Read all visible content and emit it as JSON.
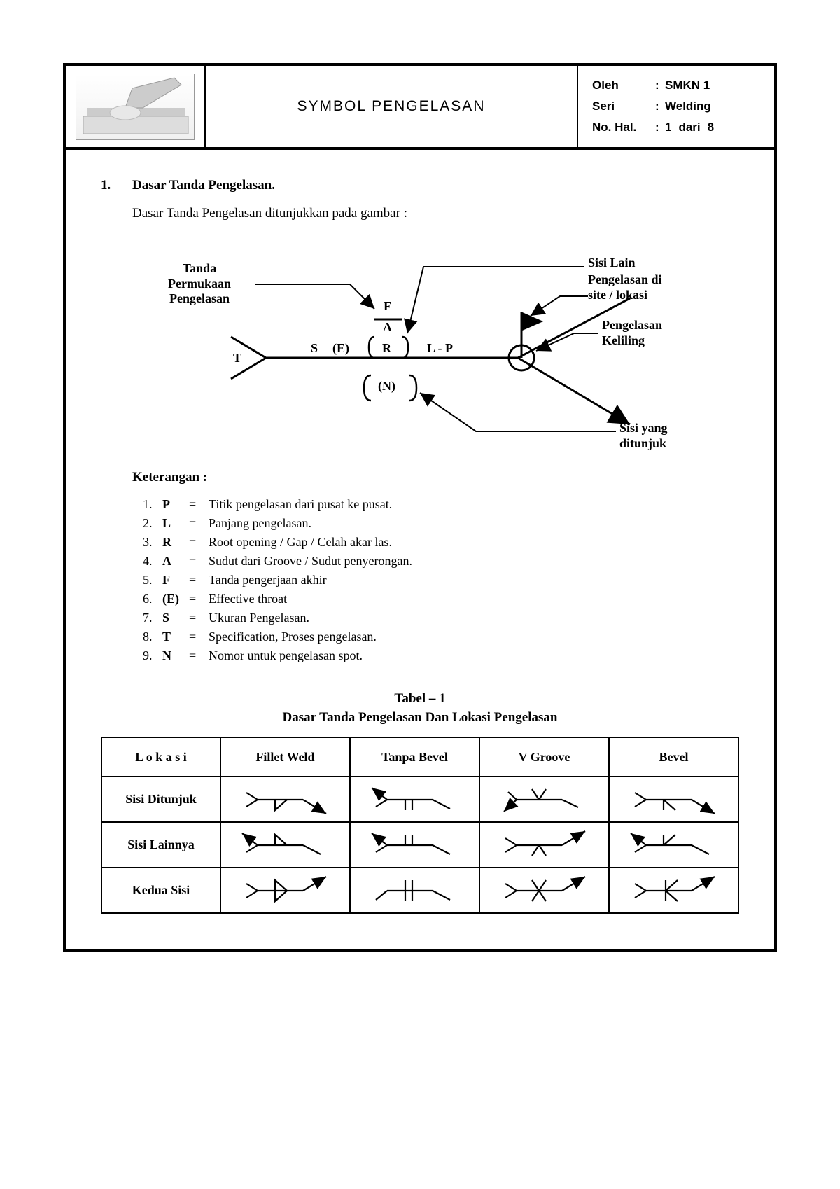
{
  "header": {
    "title": "SYMBOL  PENGELASAN",
    "meta": {
      "oleh_label": "Oleh",
      "oleh_value": "SMKN 1",
      "seri_label": "Seri",
      "seri_value": "Welding",
      "hal_label": "No. Hal.",
      "hal_page": "1",
      "hal_mid": "dari",
      "hal_total": "8"
    }
  },
  "section": {
    "num": "1.",
    "title": "Dasar Tanda Pengelasan.",
    "intro": "Dasar Tanda Pengelasan ditunjukkan pada gambar :"
  },
  "diagram": {
    "labels": {
      "tanda_permukaan": "Tanda\nPermukaan\nPengelasan",
      "sisi_lain": "Sisi Lain",
      "peng_site": "Pengelasan di\nsite / lokasi",
      "peng_keliling": "Pengelasan\nKeliling",
      "sisi_ditunjuk": "Sisi yang\nditunjuk",
      "F": "F",
      "A": "A",
      "S": "S",
      "E": "(E)",
      "R": "R",
      "L": "L - P",
      "N": "(N)",
      "T": "T"
    },
    "style": {
      "stroke": "#000000",
      "stroke_width_main": 3,
      "stroke_width_thin": 2,
      "circle_r": 18
    }
  },
  "keterangan": {
    "title": "Keterangan :",
    "items": [
      {
        "n": "1.",
        "sym": "P",
        "desc": "Titik pengelasan dari pusat ke pusat."
      },
      {
        "n": "2.",
        "sym": "L",
        "desc": "Panjang pengelasan."
      },
      {
        "n": "3.",
        "sym": "R",
        "desc": "Root opening / Gap / Celah akar las."
      },
      {
        "n": "4.",
        "sym": "A",
        "desc": "Sudut dari Groove / Sudut penyerongan."
      },
      {
        "n": "5.",
        "sym": "F",
        "desc": "Tanda pengerjaan akhir"
      },
      {
        "n": "6.",
        "sym": "(E)",
        "desc": "Effective throat"
      },
      {
        "n": "7.",
        "sym": "S",
        "desc": "Ukuran Pengelasan."
      },
      {
        "n": "8.",
        "sym": "T",
        "desc": "Specification, Proses pengelasan."
      },
      {
        "n": "9.",
        "sym": "N",
        "desc": "Nomor untuk pengelasan spot."
      }
    ]
  },
  "table": {
    "title_line1": "Tabel – 1",
    "title_line2": "Dasar Tanda Pengelasan Dan Lokasi Pengelasan",
    "columns": [
      "L o k a s i",
      "Fillet Weld",
      "Tanpa Bevel",
      "V   Groove",
      "Bevel"
    ],
    "rows": [
      {
        "label": "Sisi Ditunjuk",
        "cells": [
          "fillet-arrow",
          "square-arrow",
          "vgroove-arrow",
          "bevel-arrow"
        ]
      },
      {
        "label": "Sisi  Lainnya",
        "cells": [
          "fillet-other",
          "square-other",
          "vgroove-other",
          "bevel-other"
        ]
      },
      {
        "label": "Kedua Sisi",
        "cells": [
          "fillet-both",
          "square-both",
          "vgroove-both",
          "bevel-both"
        ]
      }
    ],
    "style": {
      "stroke": "#000000",
      "sw": 2.2
    }
  }
}
